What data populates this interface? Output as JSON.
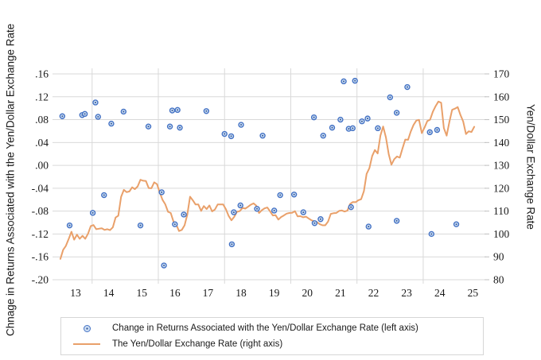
{
  "chart_data": {
    "type": "scatter+line",
    "title": "",
    "x_axis": {
      "labels": [
        "13",
        "14",
        "15",
        "16",
        "17",
        "18",
        "19",
        "20",
        "21",
        "22",
        "23",
        "24",
        "25"
      ],
      "range": [
        12.9,
        25.9
      ],
      "gridlines": [
        14,
        16,
        18,
        20,
        22,
        24
      ]
    },
    "left_axis": {
      "title": "Chnage in Returns Associated with the Yen/Dollar Exchange Rate",
      "tick_labels": [
        ".16",
        ".12",
        ".08",
        ".04",
        ".00",
        "-.04",
        "-.08",
        "-.12",
        "-.16",
        "-.20"
      ],
      "tick_values": [
        0.16,
        0.12,
        0.08,
        0.04,
        0.0,
        -0.04,
        -0.08,
        -0.12,
        -0.16,
        -0.2
      ],
      "range": [
        -0.2,
        0.16
      ]
    },
    "right_axis": {
      "title": "Yen/Dollar Exchange Rate",
      "tick_labels": [
        "170",
        "160",
        "150",
        "140",
        "130",
        "120",
        "110",
        "100",
        "90",
        "80"
      ],
      "tick_values": [
        170,
        160,
        150,
        140,
        130,
        120,
        110,
        100,
        90,
        80
      ],
      "range": [
        80,
        170
      ]
    },
    "grid_color": "#D9D9D9",
    "series": [
      {
        "name": "Change in Returns Associated with the Yen/Dollar Exchange Rate (left axis)",
        "type": "scatter",
        "axis": "left",
        "color": "#4472C4",
        "fill": "#cfe0f4",
        "center_dot": "#2f5597",
        "points": [
          [
            13.1,
            0.086
          ],
          [
            13.7,
            0.088
          ],
          [
            13.78,
            0.09
          ],
          [
            14.1,
            0.11
          ],
          [
            14.18,
            0.085
          ],
          [
            14.58,
            0.073
          ],
          [
            14.95,
            0.094
          ],
          [
            15.7,
            0.068
          ],
          [
            16.35,
            0.068
          ],
          [
            16.42,
            0.096
          ],
          [
            16.58,
            0.097
          ],
          [
            16.65,
            0.066
          ],
          [
            17.45,
            0.095
          ],
          [
            18.0,
            0.055
          ],
          [
            18.2,
            0.051
          ],
          [
            18.5,
            0.071
          ],
          [
            19.15,
            0.052
          ],
          [
            20.7,
            0.084
          ],
          [
            20.98,
            0.052
          ],
          [
            21.25,
            0.066
          ],
          [
            21.5,
            0.08
          ],
          [
            21.6,
            0.147
          ],
          [
            21.75,
            0.064
          ],
          [
            21.87,
            0.065
          ],
          [
            21.94,
            0.148
          ],
          [
            22.15,
            0.077
          ],
          [
            22.32,
            0.082
          ],
          [
            22.63,
            0.065
          ],
          [
            23.0,
            0.119
          ],
          [
            23.2,
            0.092
          ],
          [
            23.52,
            0.137
          ],
          [
            24.2,
            0.058
          ],
          [
            24.42,
            0.062
          ],
          [
            13.32,
            -0.105
          ],
          [
            14.02,
            -0.083
          ],
          [
            14.36,
            -0.052
          ],
          [
            15.46,
            -0.105
          ],
          [
            16.1,
            -0.047
          ],
          [
            16.17,
            -0.175
          ],
          [
            16.5,
            -0.103
          ],
          [
            16.77,
            -0.086
          ],
          [
            18.22,
            -0.138
          ],
          [
            18.28,
            -0.082
          ],
          [
            18.48,
            -0.07
          ],
          [
            18.98,
            -0.076
          ],
          [
            19.5,
            -0.079
          ],
          [
            19.68,
            -0.052
          ],
          [
            20.1,
            -0.051
          ],
          [
            20.38,
            -0.082
          ],
          [
            20.72,
            -0.101
          ],
          [
            20.9,
            -0.094
          ],
          [
            21.82,
            -0.073
          ],
          [
            22.35,
            -0.107
          ],
          [
            23.2,
            -0.097
          ],
          [
            24.25,
            -0.12
          ],
          [
            25.0,
            -0.103
          ]
        ]
      },
      {
        "name": "The Yen/Dollar Exchange Rate (right axis)",
        "type": "line",
        "axis": "right",
        "color": "#E9A06A",
        "start_t": 13.042,
        "step": 0.08333,
        "values": [
          89.1,
          93.1,
          94.8,
          97.8,
          101.0,
          97.5,
          99.7,
          97.9,
          99.2,
          97.9,
          100.1,
          103.5,
          103.9,
          102.1,
          102.3,
          102.5,
          101.8,
          102.1,
          101.7,
          102.9,
          107.2,
          108.0,
          116.2,
          119.3,
          118.3,
          118.6,
          120.4,
          119.6,
          120.8,
          123.7,
          123.3,
          123.2,
          120.1,
          120.0,
          122.6,
          121.8,
          118.2,
          115.0,
          113.0,
          109.7,
          109.2,
          105.4,
          104.1,
          101.3,
          101.8,
          103.8,
          108.4,
          116.3,
          114.7,
          112.9,
          112.9,
          110.1,
          112.2,
          110.9,
          112.5,
          109.9,
          110.7,
          112.9,
          112.9,
          112.9,
          110.8,
          107.9,
          106.0,
          107.5,
          109.7,
          110.0,
          111.4,
          111.1,
          111.9,
          112.8,
          113.4,
          112.4,
          109.2,
          110.4,
          111.2,
          111.6,
          109.9,
          108.1,
          108.2,
          106.3,
          107.4,
          108.1,
          108.9,
          109.2,
          109.3,
          110.0,
          107.7,
          107.8,
          107.3,
          107.6,
          106.8,
          106.0,
          105.6,
          105.2,
          104.3,
          103.8,
          103.8,
          105.4,
          108.8,
          109.1,
          109.2,
          110.1,
          110.3,
          109.8,
          110.2,
          113.1,
          114.0,
          113.9,
          114.8,
          115.2,
          118.7,
          126.3,
          128.8,
          134.1,
          136.7,
          135.2,
          143.1,
          147.0,
          142.2,
          134.9,
          130.3,
          132.7,
          133.9,
          133.4,
          137.4,
          141.3,
          141.2,
          144.8,
          147.7,
          149.6,
          149.9,
          144.1,
          146.6,
          149.4,
          150.0,
          153.5,
          155.9,
          157.9,
          157.4,
          146.3,
          143.0,
          149.1,
          154.3,
          154.8,
          155.5,
          152.1,
          149.2,
          143.7,
          144.9,
          144.6,
          146.9
        ]
      }
    ],
    "legend": {
      "position": "bottom",
      "entries": [
        {
          "label": "Change in Returns Associated with the Yen/Dollar Exchange Rate (left axis)",
          "marker": "circle",
          "color": "#4472C4"
        },
        {
          "label": "The Yen/Dollar Exchange Rate (right axis)",
          "marker": "line",
          "color": "#E9A06A"
        }
      ]
    }
  }
}
